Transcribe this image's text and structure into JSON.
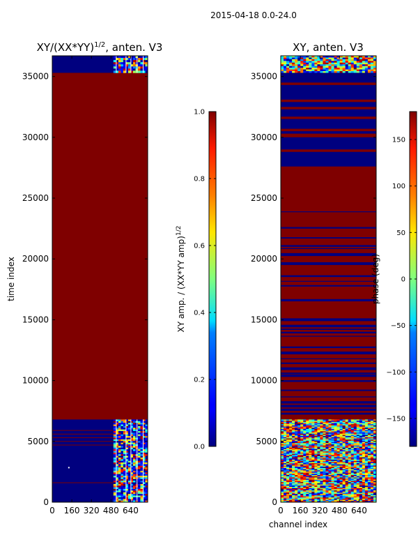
{
  "figure": {
    "suptitle": "2015-04-18 0.0-24.0"
  },
  "chart_data": [
    {
      "type": "heatmap",
      "title": "XY/(XX*YY)^1/2, anten. V3",
      "title_main": "XY/(XX*YY)",
      "title_exp": "1/2",
      "title_tail": ", anten. V3",
      "xlabel": "",
      "ylabel": "time index",
      "xlim": [
        0,
        780
      ],
      "ylim": [
        0,
        36700
      ],
      "x_ticks": [
        0,
        160,
        320,
        480,
        640
      ],
      "x_tick_labels": [
        "0",
        "160",
        "320",
        "480",
        "640"
      ],
      "y_ticks": [
        0,
        5000,
        10000,
        15000,
        20000,
        25000,
        30000,
        35000
      ],
      "y_tick_labels": [
        "0",
        "5000",
        "10000",
        "15000",
        "20000",
        "25000",
        "30000",
        "35000"
      ],
      "colormap": "jet",
      "colorbar": {
        "label_main": "XY amp. / (XX*YY amp)",
        "label_exp": "1/2",
        "range": [
          0.0,
          1.0
        ],
        "ticks": [
          0.0,
          0.2,
          0.4,
          0.6,
          0.8,
          1.0
        ],
        "tick_labels": [
          "0.0",
          "0.2",
          "0.4",
          "0.6",
          "0.8",
          "1.0"
        ]
      },
      "regions": [
        {
          "from_time": 0,
          "to_time": 6800,
          "from_channel": 0,
          "to_channel": 500,
          "value": 0.0
        },
        {
          "from_time": 0,
          "to_time": 6800,
          "from_channel": 500,
          "to_channel": 780,
          "value": "mixed 0.0-1.0"
        },
        {
          "from_time": 6800,
          "to_time": 35300,
          "from_channel": 0,
          "to_channel": 780,
          "value": 1.0
        },
        {
          "from_time": 35300,
          "to_time": 36700,
          "from_channel": 0,
          "to_channel": 500,
          "value": 0.0
        },
        {
          "from_time": 35300,
          "to_time": 36700,
          "from_channel": 500,
          "to_channel": 780,
          "value": "mixed 0.0-1.0"
        }
      ]
    },
    {
      "type": "heatmap",
      "title": "XY, anten. V3",
      "xlabel": "channel index",
      "ylabel": "",
      "xlim": [
        0,
        780
      ],
      "ylim": [
        0,
        36700
      ],
      "x_ticks": [
        0,
        160,
        320,
        480,
        640
      ],
      "x_tick_labels": [
        "0",
        "160",
        "320",
        "480",
        "640"
      ],
      "y_ticks": [
        0,
        5000,
        10000,
        15000,
        20000,
        25000,
        30000,
        35000
      ],
      "y_tick_labels": [
        "0",
        "5000",
        "10000",
        "15000",
        "20000",
        "25000",
        "30000",
        "35000"
      ],
      "colormap": "jet",
      "colorbar": {
        "label": "phase (deg)",
        "range": [
          -180,
          180
        ],
        "ticks": [
          -150,
          -100,
          -50,
          0,
          50,
          100,
          150
        ],
        "tick_labels": [
          "−150",
          "−100",
          "−50",
          "0",
          "50",
          "100",
          "150"
        ]
      },
      "regions": [
        {
          "from_time": 0,
          "to_time": 6800,
          "from_channel": 0,
          "to_channel": 780,
          "value": "mixed -180-180"
        },
        {
          "from_time": 6800,
          "to_time": 27600,
          "from_channel": 0,
          "to_channel": 780,
          "value": "alternating 180 / -180 bands"
        },
        {
          "from_time": 27600,
          "to_time": 35300,
          "from_channel": 0,
          "to_channel": 780,
          "value": "mostly -180 with few 180 lines"
        },
        {
          "from_time": 35300,
          "to_time": 36700,
          "from_channel": 0,
          "to_channel": 780,
          "value": "mixed -180-180"
        }
      ]
    }
  ]
}
